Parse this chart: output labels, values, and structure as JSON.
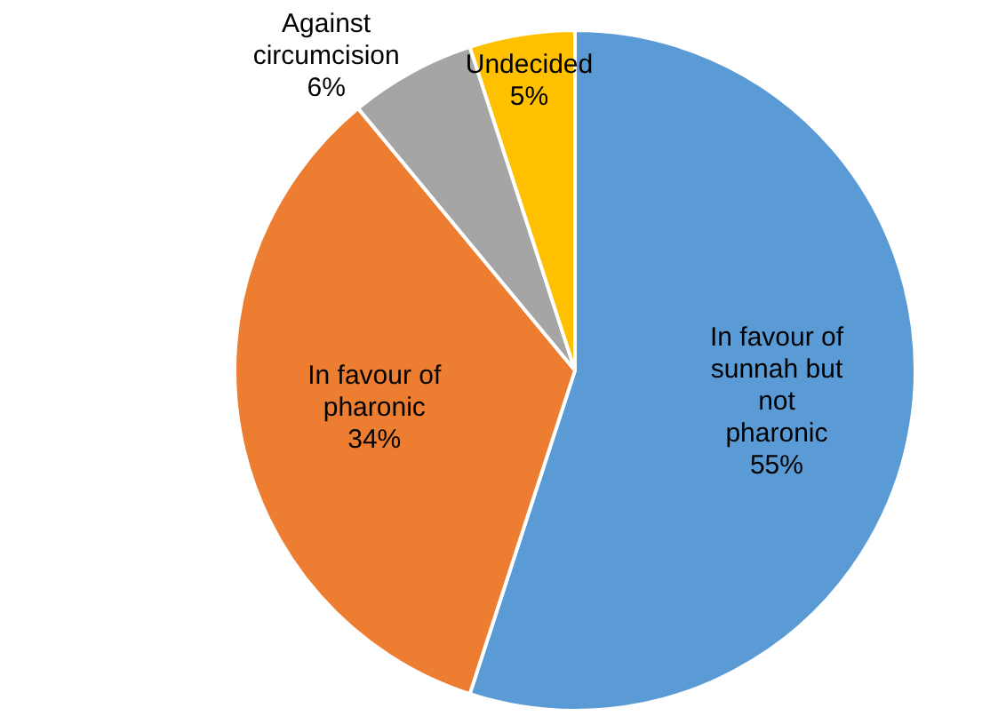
{
  "chart_data": {
    "type": "pie",
    "categories": [
      "In favour of sunnah but not pharonic",
      "In favour of pharonic",
      "Against circumcision",
      "Undecided"
    ],
    "values": [
      55,
      34,
      6,
      5
    ],
    "colors": [
      "#5b9bd5",
      "#ed7d31",
      "#a5a5a5",
      "#ffc000"
    ],
    "value_labels": [
      "55%",
      "34%",
      "6%",
      "5%"
    ],
    "legend": false
  }
}
